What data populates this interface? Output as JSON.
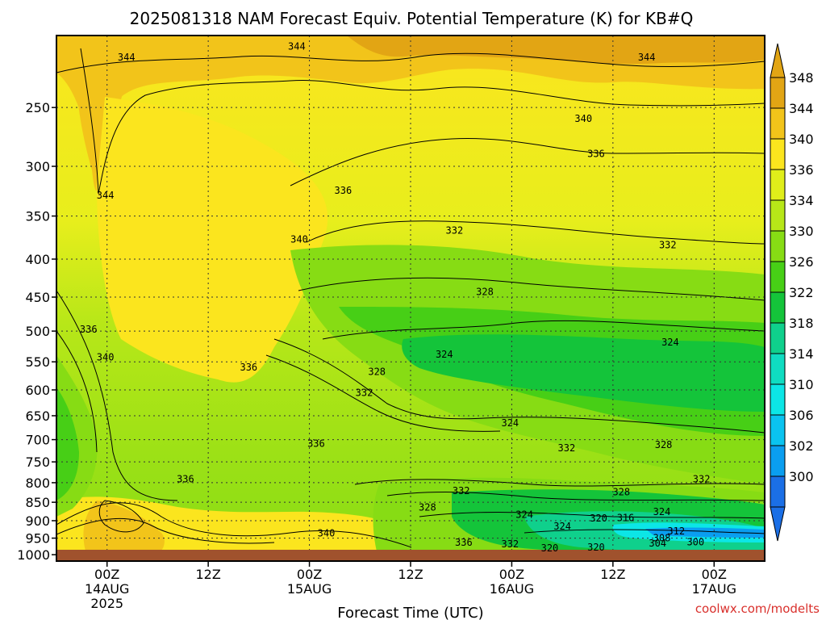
{
  "title": "2025081318 NAM Forecast Equiv. Potential Temperature (K) for KB#Q",
  "credit": "coolwx.com/modelts",
  "chart_data": {
    "type": "heatmap",
    "title": "2025081318 NAM Forecast Equiv. Potential Temperature (K) for KB#Q",
    "xlabel": "Forecast Time (UTC)",
    "ylabel": "",
    "x_ticks": [
      {
        "line1": "00Z",
        "line2": "14AUG",
        "line3": "2025",
        "hours": 6
      },
      {
        "line1": "12Z",
        "line2": "",
        "line3": "",
        "hours": 18
      },
      {
        "line1": "00Z",
        "line2": "15AUG",
        "line3": "",
        "hours": 30
      },
      {
        "line1": "12Z",
        "line2": "",
        "line3": "",
        "hours": 42
      },
      {
        "line1": "00Z",
        "line2": "16AUG",
        "line3": "",
        "hours": 54
      },
      {
        "line1": "12Z",
        "line2": "",
        "line3": "",
        "hours": 66
      },
      {
        "line1": "00Z",
        "line2": "17AUG",
        "line3": "",
        "hours": 78
      }
    ],
    "x_range_hours": [
      0,
      84
    ],
    "y_ticks_hpa": [
      250,
      300,
      350,
      400,
      450,
      500,
      550,
      600,
      650,
      700,
      750,
      800,
      850,
      900,
      950,
      1000
    ],
    "y_range_hpa": [
      200,
      1020
    ],
    "y_scale": "log",
    "grid": true,
    "colorbar": {
      "labels": [
        "348",
        "344",
        "340",
        "336",
        "334",
        "330",
        "326",
        "322",
        "318",
        "314",
        "310",
        "306",
        "302",
        "300"
      ],
      "levels": [
        348,
        344,
        340,
        336,
        334,
        330,
        326,
        322,
        318,
        314,
        310,
        306,
        302,
        300
      ],
      "colors": [
        "#e2a514",
        "#f2c41a",
        "#fbe51e",
        "#e0ee1a",
        "#b7e718",
        "#87dc14",
        "#47cf16",
        "#14c43a",
        "#0fd08c",
        "#0fdcc1",
        "#0ce6e6",
        "#0ac3f0",
        "#0a9ef0",
        "#1b6fe6"
      ],
      "extend": "both"
    },
    "contour_labels": [
      {
        "text": "344",
        "hours": 8.3,
        "hpa": 215
      },
      {
        "text": "344",
        "hours": 28.5,
        "hpa": 208
      },
      {
        "text": "344",
        "hours": 70,
        "hpa": 215
      },
      {
        "text": "344",
        "hours": 5.8,
        "hpa": 330
      },
      {
        "text": "340",
        "hours": 62.5,
        "hpa": 260
      },
      {
        "text": "336",
        "hours": 64,
        "hpa": 290
      },
      {
        "text": "336",
        "hours": 34,
        "hpa": 325
      },
      {
        "text": "332",
        "hours": 47.2,
        "hpa": 368
      },
      {
        "text": "332",
        "hours": 72.5,
        "hpa": 385
      },
      {
        "text": "340",
        "hours": 28.8,
        "hpa": 378
      },
      {
        "text": "328",
        "hours": 50.8,
        "hpa": 445
      },
      {
        "text": "336",
        "hours": 3.8,
        "hpa": 500
      },
      {
        "text": "340",
        "hours": 5.8,
        "hpa": 545
      },
      {
        "text": "336",
        "hours": 22.8,
        "hpa": 562
      },
      {
        "text": "324",
        "hours": 46,
        "hpa": 540
      },
      {
        "text": "324",
        "hours": 72.8,
        "hpa": 520
      },
      {
        "text": "328",
        "hours": 38,
        "hpa": 570
      },
      {
        "text": "332",
        "hours": 36.5,
        "hpa": 608
      },
      {
        "text": "324",
        "hours": 53.8,
        "hpa": 668
      },
      {
        "text": "336",
        "hours": 30.8,
        "hpa": 712
      },
      {
        "text": "332",
        "hours": 60.5,
        "hpa": 722
      },
      {
        "text": "328",
        "hours": 72,
        "hpa": 715
      },
      {
        "text": "336",
        "hours": 15.3,
        "hpa": 795
      },
      {
        "text": "332",
        "hours": 76.5,
        "hpa": 795
      },
      {
        "text": "332",
        "hours": 48,
        "hpa": 825
      },
      {
        "text": "328",
        "hours": 67,
        "hpa": 828
      },
      {
        "text": "328",
        "hours": 44,
        "hpa": 868
      },
      {
        "text": "324",
        "hours": 55.5,
        "hpa": 888
      },
      {
        "text": "324",
        "hours": 71.8,
        "hpa": 880
      },
      {
        "text": "320",
        "hours": 64.3,
        "hpa": 898
      },
      {
        "text": "316",
        "hours": 67.5,
        "hpa": 897
      },
      {
        "text": "324",
        "hours": 60,
        "hpa": 920
      },
      {
        "text": "312",
        "hours": 73.5,
        "hpa": 935
      },
      {
        "text": "308",
        "hours": 71.8,
        "hpa": 955
      },
      {
        "text": "340",
        "hours": 32,
        "hpa": 940
      },
      {
        "text": "336",
        "hours": 48.3,
        "hpa": 968
      },
      {
        "text": "332",
        "hours": 53.8,
        "hpa": 973
      },
      {
        "text": "304",
        "hours": 71.3,
        "hpa": 970
      },
      {
        "text": "300",
        "hours": 75.8,
        "hpa": 967
      },
      {
        "text": "320",
        "hours": 58.5,
        "hpa": 985
      },
      {
        "text": "320",
        "hours": 64,
        "hpa": 983
      }
    ]
  }
}
